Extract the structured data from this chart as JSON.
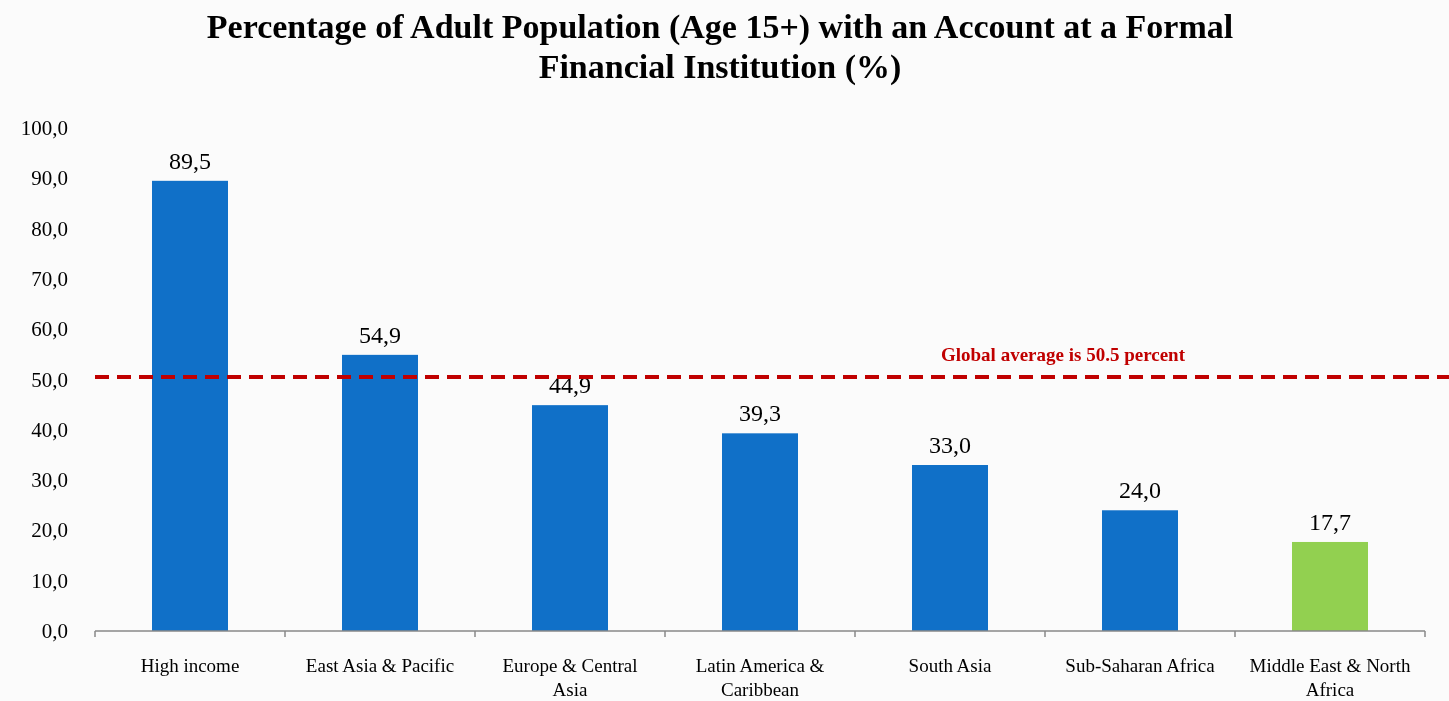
{
  "chart_data": {
    "type": "bar",
    "title": "Percentage of Adult Population (Age 15+) with an Account at a Formal Financial Institution (%)",
    "categories": [
      "High income",
      "East Asia & Pacific",
      "Europe & Central Asia",
      "Latin America & Caribbean",
      "South Asia",
      "Sub-Saharan Africa",
      "Middle East & North Africa"
    ],
    "values": [
      89.5,
      54.9,
      44.9,
      39.3,
      33.0,
      24.0,
      17.7
    ],
    "colors": [
      "#1070c8",
      "#1070c8",
      "#1070c8",
      "#1070c8",
      "#1070c8",
      "#1070c8",
      "#92d050"
    ],
    "value_labels": [
      "89,5",
      "54,9",
      "44,9",
      "39,3",
      "33,0",
      "24,0",
      "17,7"
    ],
    "ylim": [
      0,
      100
    ],
    "yticks": [
      {
        "value": 0,
        "label": "0,0"
      },
      {
        "value": 10,
        "label": "10,0"
      },
      {
        "value": 20,
        "label": "20,0"
      },
      {
        "value": 30,
        "label": "30,0"
      },
      {
        "value": 40,
        "label": "40,0"
      },
      {
        "value": 50,
        "label": "50,0"
      },
      {
        "value": 60,
        "label": "60,0"
      },
      {
        "value": 70,
        "label": "70,0"
      },
      {
        "value": 80,
        "label": "80,0"
      },
      {
        "value": 90,
        "label": "90,0"
      },
      {
        "value": 100,
        "label": "100,0"
      }
    ],
    "ref_lines": [
      {
        "axis": "y",
        "value": 50.5,
        "label": "Global average is 50.5 percent",
        "color": "#c00000",
        "line_style": "dashed"
      }
    ],
    "orientation": "vertical"
  }
}
